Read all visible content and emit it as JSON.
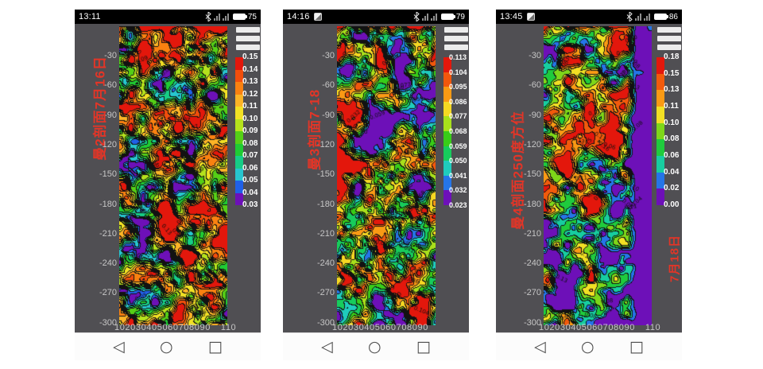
{
  "colors": {
    "accent_red": "#e33527",
    "screen_background": "#504f53",
    "statusbar_background": "#000000",
    "axis_text": "#c6c6c6",
    "navbar_background": "#fcfcfc"
  },
  "nav": {
    "back_icon": "◁",
    "home_icon": "○",
    "recents_icon": "□"
  },
  "phones": [
    {
      "status": {
        "time": "13:11",
        "battery_percent": "75",
        "has_screenshot_icon": false
      },
      "title": "曼2剖面7月16日",
      "side_label": "",
      "axes": {
        "y_ticks": [
          "-30",
          "-60",
          "-90",
          "-120",
          "-150",
          "-180",
          "-210",
          "-240",
          "-270",
          "-300"
        ],
        "x_ticks": "102030405060708090",
        "x_tick_extra": "110"
      },
      "colorbar": {
        "labels": [
          "0.15",
          "0.14",
          "0.13",
          "0.12",
          "0.11",
          "0.10",
          "0.09",
          "0.08",
          "0.07",
          "0.06",
          "0.05",
          "0.04",
          "0.03"
        ],
        "segment_colors": [
          "#e3170c",
          "#f24e0b",
          "#fa8110",
          "#fcb426",
          "#f2e024",
          "#b5e21c",
          "#55cf16",
          "#1fcb33",
          "#16cd86",
          "#27c6cf",
          "#2060e8",
          "#6d10b8"
        ]
      },
      "contour_labels": [
        "0.12",
        "0.05",
        "0.09",
        "0.08",
        "0.07",
        "0.11",
        "0.06",
        "0.12",
        "0.04",
        "0.10",
        "0.03",
        "0.13",
        "0.09",
        "0.06",
        "0.08",
        "0.14",
        "0.05",
        "0.10",
        "0.07",
        "0.11",
        "0.04",
        "0.09",
        "0.06",
        "0.13",
        "0.08",
        "0.12",
        "0.05",
        "0.07",
        "0.10",
        "0.03"
      ],
      "seed": 11
    },
    {
      "status": {
        "time": "14:16",
        "battery_percent": "79",
        "has_screenshot_icon": true
      },
      "title": "曼3剖面7-18",
      "side_label": "",
      "axes": {
        "y_ticks": [
          "-30",
          "-60",
          "-90",
          "-120",
          "-150",
          "-180",
          "-210",
          "-240",
          "-270",
          "-300"
        ],
        "x_ticks": "102030405060708090",
        "x_tick_extra": ""
      },
      "colorbar": {
        "labels": [
          "0.113",
          "0.104",
          "0.095",
          "0.086",
          "0.077",
          "0.068",
          "0.059",
          "0.050",
          "0.041",
          "0.032",
          "0.023"
        ],
        "segment_colors": [
          "#e3170c",
          "#f2570c",
          "#fa9a14",
          "#f6d822",
          "#a8e01b",
          "#38cd18",
          "#17cc5c",
          "#1fccbd",
          "#2575e8",
          "#6d10b8"
        ]
      },
      "contour_labels": [
        "0.095",
        "0.059",
        "0.068",
        "0.086",
        "0.050",
        "0.077",
        "0.041",
        "0.104",
        "0.059",
        "0.032",
        "0.068",
        "0.095",
        "0.023",
        "0.050",
        "0.086",
        "0.113",
        "0.041",
        "0.077",
        "0.059",
        "0.068",
        "0.032",
        "0.095",
        "0.050",
        "0.104",
        "0.068",
        "0.041",
        "0.086",
        "0.059",
        "0.077",
        "0.023"
      ],
      "seed": 47
    },
    {
      "status": {
        "time": "13:45",
        "battery_percent": "86",
        "has_screenshot_icon": true
      },
      "title": "曼4剖面250度方位",
      "side_label": "7月18日",
      "axes": {
        "y_ticks": [
          "-30",
          "-60",
          "-90",
          "-120",
          "-150",
          "-180",
          "-210",
          "-240",
          "-270",
          "-300"
        ],
        "x_ticks": "102030405060708090",
        "x_tick_extra": "110"
      },
      "colorbar": {
        "labels": [
          "0.18",
          "0.15",
          "0.13",
          "0.11",
          "0.10",
          "0.08",
          "0.06",
          "0.04",
          "0.02",
          "0.00"
        ],
        "segment_colors": [
          "#e3170c",
          "#f25a0c",
          "#fa9a14",
          "#f2e024",
          "#7ed719",
          "#1fcb3d",
          "#17cda0",
          "#2575e8",
          "#6d10b8"
        ]
      },
      "contour_labels": [
        "0.06",
        "0.15",
        "0.13",
        "0.10",
        "0.08",
        "0.11",
        "0.04",
        "0.16",
        "0.02",
        "0.13",
        "0.06",
        "0.10",
        "0.08",
        "0.15",
        "0.05",
        "0.11",
        "0.13",
        "0.04",
        "0.08",
        "0.17",
        "0.06",
        "0.10",
        "0.15",
        "0.02",
        "0.11",
        "0.08",
        "0.13",
        "0.05",
        "0.10",
        "0.06"
      ],
      "seed": 83
    }
  ],
  "chart_data": [
    {
      "type": "heatmap",
      "title": "曼2剖面7月16日",
      "xlabel": "",
      "ylabel": "",
      "x_ticks": [
        10,
        20,
        30,
        40,
        50,
        60,
        70,
        80,
        90,
        110
      ],
      "y_ticks": [
        -30,
        -60,
        -90,
        -120,
        -150,
        -180,
        -210,
        -240,
        -270,
        -300
      ],
      "x_range": [
        10,
        110
      ],
      "y_range": [
        -300,
        0
      ],
      "colorbar_levels": [
        0.15,
        0.14,
        0.13,
        0.12,
        0.11,
        0.1,
        0.09,
        0.08,
        0.07,
        0.06,
        0.05,
        0.04,
        0.03
      ],
      "colormap": "rainbow-jet",
      "legend_position": "right",
      "note": "filled contour depth section with scattered contour value labels 0.03-0.15"
    },
    {
      "type": "heatmap",
      "title": "曼3剖面7-18",
      "xlabel": "",
      "ylabel": "",
      "x_ticks": [
        10,
        20,
        30,
        40,
        50,
        60,
        70,
        80,
        90
      ],
      "y_ticks": [
        -30,
        -60,
        -90,
        -120,
        -150,
        -180,
        -210,
        -240,
        -270,
        -300
      ],
      "x_range": [
        10,
        90
      ],
      "y_range": [
        -300,
        0
      ],
      "colorbar_levels": [
        0.113,
        0.104,
        0.095,
        0.086,
        0.077,
        0.068,
        0.059,
        0.05,
        0.041,
        0.032,
        0.023
      ],
      "colormap": "rainbow-jet",
      "legend_position": "right",
      "note": "filled contour depth section with scattered contour value labels 0.023-0.113"
    },
    {
      "type": "heatmap",
      "title": "曼4剖面250度方位 7月18日",
      "xlabel": "",
      "ylabel": "",
      "x_ticks": [
        10,
        20,
        30,
        40,
        50,
        60,
        70,
        80,
        90,
        110
      ],
      "y_ticks": [
        -30,
        -60,
        -90,
        -120,
        -150,
        -180,
        -210,
        -240,
        -270,
        -300
      ],
      "x_range": [
        10,
        110
      ],
      "y_range": [
        -300,
        0
      ],
      "colorbar_levels": [
        0.18,
        0.15,
        0.13,
        0.11,
        0.1,
        0.08,
        0.06,
        0.04,
        0.02,
        0.0
      ],
      "colormap": "rainbow-jet",
      "legend_position": "right",
      "note": "filled contour depth section; low (blue/purple) vertical band on right side near x=90-110"
    }
  ]
}
